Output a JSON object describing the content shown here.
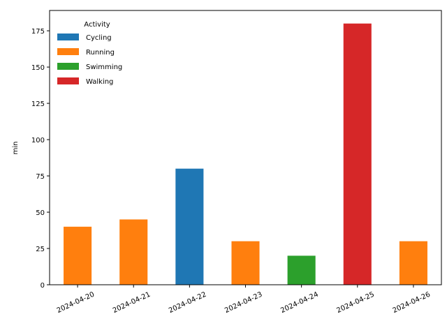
{
  "chart_data": {
    "type": "bar",
    "stacked": true,
    "categories": [
      "2024-04-20",
      "2024-04-21",
      "2024-04-22",
      "2024-04-23",
      "2024-04-24",
      "2024-04-25",
      "2024-04-26"
    ],
    "series": [
      {
        "name": "Cycling",
        "color": "#1f77b4",
        "values": [
          0,
          0,
          80,
          0,
          0,
          0,
          0
        ]
      },
      {
        "name": "Running",
        "color": "#ff7f0e",
        "values": [
          40,
          45,
          0,
          30,
          0,
          0,
          30
        ]
      },
      {
        "name": "Swimming",
        "color": "#2ca02c",
        "values": [
          0,
          0,
          0,
          0,
          20,
          0,
          0
        ]
      },
      {
        "name": "Walking",
        "color": "#d62728",
        "values": [
          0,
          0,
          0,
          0,
          0,
          180,
          0
        ]
      }
    ],
    "title": "",
    "xlabel": "",
    "ylabel": "min",
    "ylim": [
      0,
      189
    ],
    "yticks": [
      0,
      25,
      50,
      75,
      100,
      125,
      150,
      175
    ],
    "grid": false,
    "legend": {
      "title": "Activity",
      "placement": "top-left"
    }
  }
}
